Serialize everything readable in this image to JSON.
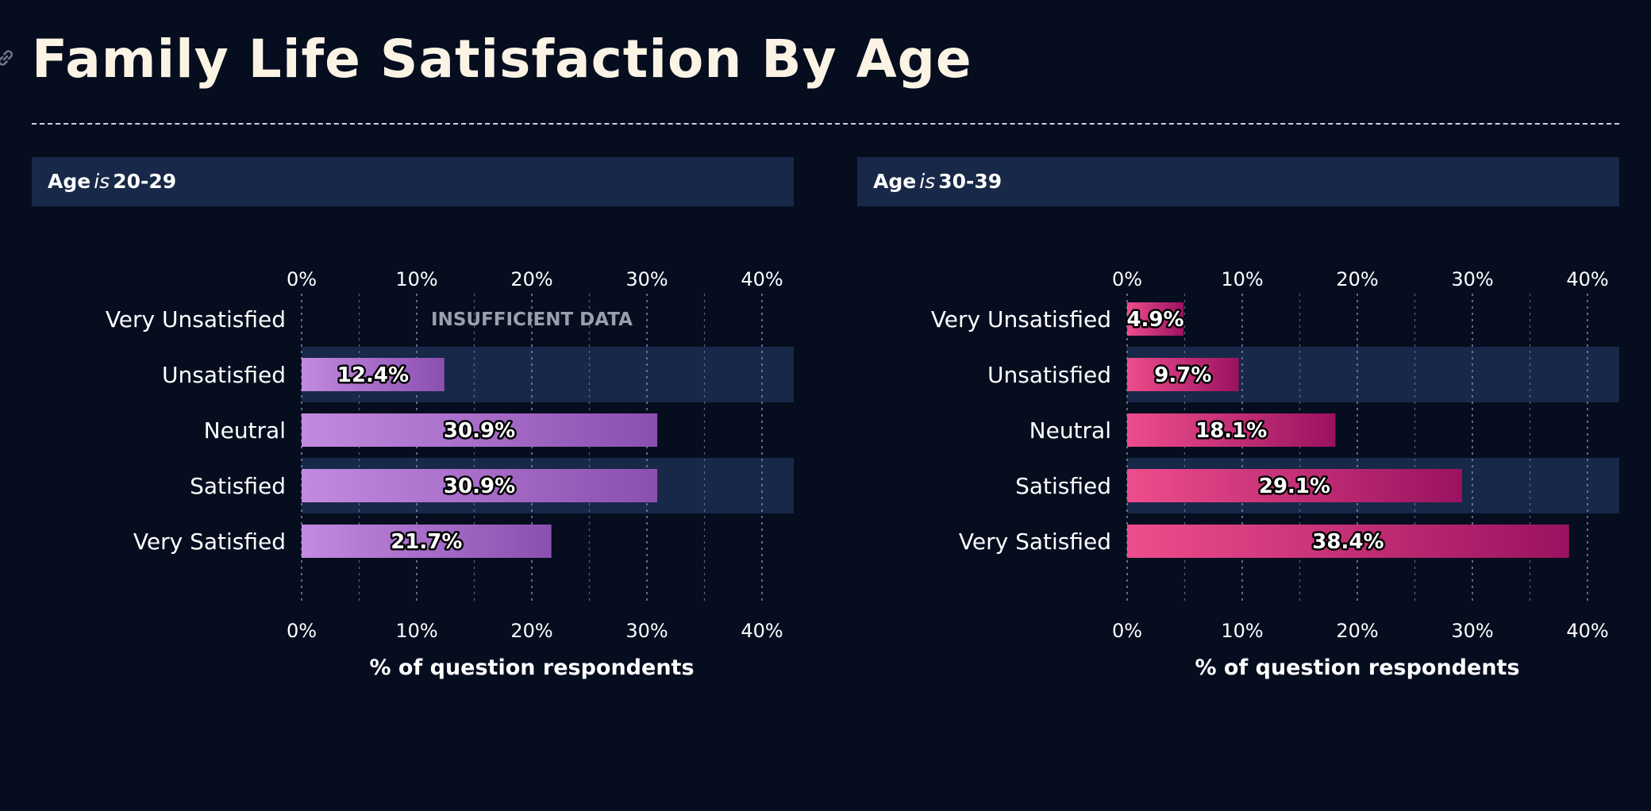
{
  "title": "Family Life Satisfaction By Age",
  "colors": {
    "background": "#050d1f",
    "panel_band": "#172848",
    "title": "#fbf3e4",
    "gridline": "#7d8aa6"
  },
  "panels": [
    {
      "facet_field": "Age",
      "facet_connector": "is",
      "facet_value": "20-29"
    },
    {
      "facet_field": "Age",
      "facet_connector": "is",
      "facet_value": "30-39"
    }
  ],
  "chart_data": [
    {
      "type": "bar",
      "orientation": "horizontal",
      "categories": [
        "Very Unsatisfied",
        "Unsatisfied",
        "Neutral",
        "Satisfied",
        "Very Satisfied"
      ],
      "values": [
        null,
        12.4,
        30.9,
        30.9,
        21.7
      ],
      "value_labels": [
        "",
        "12.4%",
        "30.9%",
        "30.9%",
        "21.7%"
      ],
      "missing_note": "INSUFFICIENT DATA",
      "xlabel": "% of question respondents",
      "xlim": [
        0,
        43
      ],
      "xticks": [
        0,
        10,
        20,
        30,
        40
      ],
      "xtick_labels": [
        "0%",
        "10%",
        "20%",
        "30%",
        "40%"
      ],
      "gradient": [
        "#c28ae0",
        "#8b4fb0"
      ],
      "grid": true
    },
    {
      "type": "bar",
      "orientation": "horizontal",
      "categories": [
        "Very Unsatisfied",
        "Unsatisfied",
        "Neutral",
        "Satisfied",
        "Very Satisfied"
      ],
      "values": [
        4.9,
        9.7,
        18.1,
        29.1,
        38.4
      ],
      "value_labels": [
        "4.9%",
        "9.7%",
        "18.1%",
        "29.1%",
        "38.4%"
      ],
      "missing_note": "",
      "xlabel": "% of question respondents",
      "xlim": [
        0,
        43
      ],
      "xticks": [
        0,
        10,
        20,
        30,
        40
      ],
      "xtick_labels": [
        "0%",
        "10%",
        "20%",
        "30%",
        "40%"
      ],
      "gradient": [
        "#ee4d8c",
        "#9a1260"
      ],
      "grid": true
    }
  ]
}
